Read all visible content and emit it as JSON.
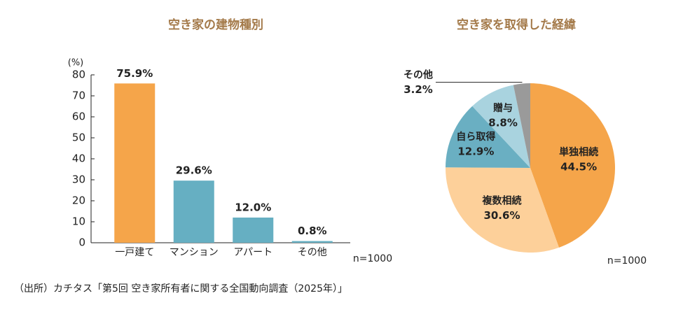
{
  "chart_data": [
    {
      "type": "bar",
      "title": "空き家の建物種別",
      "y_label": "(%)",
      "categories": [
        "一戸建て",
        "マンション",
        "アパート",
        "その他"
      ],
      "values": [
        75.9,
        29.6,
        12.0,
        0.8
      ],
      "value_labels": [
        "75.9%",
        "29.6%",
        "12.0%",
        "0.8%"
      ],
      "colors": [
        "#f5a54a",
        "#66afc2",
        "#66afc2",
        "#66afc2"
      ],
      "ylim": [
        0,
        80
      ],
      "yticks": [
        0,
        10,
        20,
        30,
        40,
        50,
        60,
        70,
        80
      ],
      "note": "n=1000"
    },
    {
      "type": "pie",
      "title": "空き家を取得した経緯",
      "categories": [
        "単独相続",
        "複数相続",
        "自ら取得",
        "贈与",
        "その他"
      ],
      "values": [
        44.5,
        30.6,
        12.9,
        8.8,
        3.2
      ],
      "value_labels": [
        "44.5%",
        "30.6%",
        "12.9%",
        "8.8%",
        "3.2%"
      ],
      "colors": [
        "#f5a54a",
        "#fdd09a",
        "#6aafc2",
        "#a9d3df",
        "#9a9a9a"
      ],
      "note": "n=1000"
    }
  ],
  "source": "（出所）カチタス「第5回 空き家所有者に関する全国動向調査（2025年）」"
}
